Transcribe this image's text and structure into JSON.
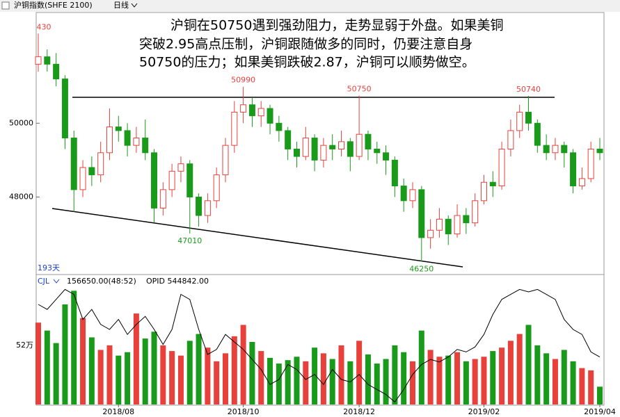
{
  "chart_data": {
    "type": "candlestick",
    "title": "沪铜指数(SHFE 2100)",
    "period": "日线",
    "commentary": [
      "沪铜在50750遇到强劲阻力，走势显弱于外盘。如果美铜",
      "突破2.95高点压制，沪铜跟随做多的同时，仍要注意自身",
      "50750的压力；如果美铜跌破2.87，沪铜可以顺势做空。"
    ],
    "days_label": "193天",
    "categories": [
      null,
      null,
      null,
      null,
      null,
      null,
      null,
      null,
      null,
      "2018/08",
      null,
      null,
      null,
      null,
      null,
      null,
      null,
      null,
      null,
      null,
      null,
      null,
      null,
      "2018/10",
      null,
      null,
      null,
      null,
      null,
      null,
      null,
      null,
      null,
      null,
      null,
      null,
      "2018/12",
      null,
      null,
      null,
      null,
      null,
      null,
      null,
      null,
      null,
      null,
      null,
      null,
      null,
      "2019/02",
      null,
      null,
      null,
      null,
      null,
      null,
      null,
      null,
      null,
      null,
      null,
      null,
      "2019/04"
    ],
    "open": [
      51600,
      51800,
      51600,
      51200,
      49600,
      48200,
      48800,
      48600,
      49200,
      49900,
      49800,
      49400,
      49600,
      49200,
      47700,
      48200,
      48700,
      48900,
      48000,
      47500,
      47900,
      48600,
      49400,
      50300,
      50500,
      50200,
      50400,
      50000,
      49800,
      49300,
      49100,
      49600,
      49000,
      49400,
      49300,
      49500,
      49100,
      49700,
      49300,
      49200,
      49000,
      48300,
      47900,
      48200,
      46900,
      47100,
      47400,
      47000,
      47500,
      47300,
      47900,
      48400,
      48300,
      49300,
      49800,
      50300,
      50000,
      49400,
      49200,
      49400,
      49200,
      48300,
      48500,
      49300
    ],
    "high": [
      52430,
      52000,
      51900,
      51300,
      49800,
      49000,
      49100,
      49500,
      50400,
      50200,
      50000,
      49900,
      50100,
      49300,
      48400,
      48900,
      49100,
      49000,
      48100,
      48100,
      48800,
      49600,
      50600,
      50990,
      50700,
      50600,
      50500,
      50200,
      49900,
      49500,
      49900,
      49700,
      49600,
      49700,
      49800,
      49600,
      50750,
      49800,
      49500,
      49400,
      49100,
      48500,
      48400,
      48300,
      47400,
      47700,
      47500,
      47800,
      47700,
      48100,
      48600,
      48700,
      49500,
      50100,
      50500,
      50740,
      50100,
      49700,
      49600,
      49500,
      49300,
      48800,
      49500,
      49600
    ],
    "low": [
      51400,
      51400,
      51000,
      49300,
      47600,
      48000,
      48300,
      48400,
      49000,
      49500,
      49100,
      49200,
      49000,
      47300,
      47500,
      48000,
      48400,
      47010,
      47200,
      47300,
      47700,
      48400,
      49200,
      50000,
      49900,
      49900,
      49700,
      49500,
      49000,
      48800,
      49000,
      48700,
      48800,
      49000,
      49100,
      48700,
      49000,
      49000,
      48900,
      48600,
      48000,
      47600,
      47700,
      46250,
      46600,
      46900,
      46700,
      46900,
      47000,
      47200,
      47800,
      48000,
      48200,
      49100,
      49600,
      49800,
      49200,
      49000,
      49000,
      48800,
      48100,
      48200,
      48400,
      49000
    ],
    "close": [
      51800,
      51600,
      51200,
      49600,
      48200,
      48800,
      48600,
      49200,
      49900,
      49800,
      49400,
      49600,
      49200,
      47700,
      48200,
      48700,
      48900,
      48000,
      47500,
      47900,
      48600,
      49400,
      50300,
      50500,
      50200,
      50400,
      50000,
      49800,
      49300,
      49100,
      49600,
      49000,
      49400,
      49300,
      49500,
      49100,
      49700,
      49300,
      49200,
      49000,
      48300,
      47900,
      48200,
      46900,
      47100,
      47400,
      47000,
      47500,
      47300,
      47900,
      48400,
      48300,
      49300,
      49800,
      50300,
      50000,
      49400,
      49200,
      49400,
      49200,
      48300,
      48500,
      49300,
      49200
    ],
    "ylim": [
      45900,
      53000
    ],
    "yticks": [
      48000,
      50000
    ],
    "high_labels": [
      "430",
      "50990",
      "50750",
      "50740"
    ],
    "low_labels": [
      "47010",
      "46250"
    ],
    "up_color": "#e8413c",
    "down_color": "#1a9a1a",
    "volume": {
      "name": "CJL",
      "header": "156650.00(48:52)",
      "values": [
        720000,
        650000,
        540000,
        880000,
        1000000,
        760000,
        590000,
        480000,
        520000,
        430000,
        460000,
        800000,
        580000,
        640000,
        520000,
        470000,
        430000,
        560000,
        620000,
        500000,
        380000,
        450000,
        600000,
        700000,
        550000,
        470000,
        410000,
        360000,
        390000,
        420000,
        380000,
        500000,
        450000,
        400000,
        520000,
        380000,
        560000,
        440000,
        360000,
        400000,
        520000,
        460000,
        380000,
        650000,
        480000,
        420000,
        430000,
        460000,
        380000,
        400000,
        420000,
        470000,
        500000,
        560000,
        620000,
        700000,
        520000,
        450000,
        400000,
        480000,
        380000,
        320000,
        300000,
        156650
      ],
      "ylim": [
        0,
        1100000
      ],
      "yticks": [
        {
          "value": 520000,
          "label": "52万"
        }
      ]
    },
    "opid": {
      "header": "OPID 544842.00",
      "color": "#000000",
      "values": [
        650000,
        640000,
        660000,
        680000,
        670000,
        620000,
        640000,
        610000,
        600000,
        620000,
        590000,
        610000,
        626000,
        600000,
        570000,
        600000,
        670000,
        660000,
        600000,
        550000,
        560000,
        590000,
        575000,
        560000,
        540000,
        520000,
        490000,
        500000,
        530000,
        520000,
        500000,
        510000,
        490000,
        520000,
        500000,
        495000,
        510000,
        490000,
        480000,
        470000,
        455000,
        480000,
        510000,
        530000,
        540000,
        535000,
        545000,
        560000,
        555000,
        565000,
        590000,
        630000,
        660000,
        670000,
        680000,
        675000,
        680000,
        670000,
        660000,
        620000,
        600000,
        590000,
        555000,
        544842
      ],
      "y2lim": [
        450000,
        700000
      ]
    }
  }
}
